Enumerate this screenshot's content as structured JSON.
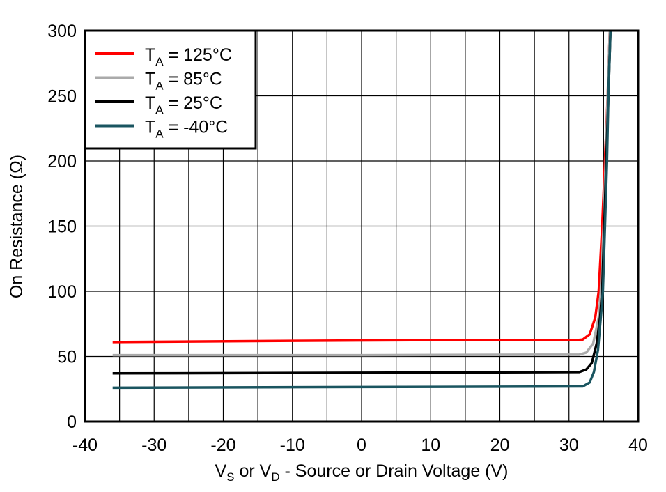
{
  "chart_data": {
    "type": "line",
    "title": "",
    "xlabel": {
      "prefix": "V",
      "sub1": "S",
      "mid": " or V",
      "sub2": "D",
      "suffix": " - Source or Drain Voltage (V)"
    },
    "ylabel": "On Resistance (Ω)",
    "xlim": [
      -40,
      40
    ],
    "ylim": [
      0,
      300
    ],
    "xticks": [
      -40,
      -30,
      -20,
      -10,
      0,
      10,
      20,
      30,
      40
    ],
    "yticks": [
      0,
      50,
      100,
      150,
      200,
      250,
      300
    ],
    "x_grid_step": 5,
    "y_grid_step": 50,
    "grid": true,
    "legend_placement": "top-left",
    "series": [
      {
        "name": "125°C",
        "label_prefix": "T",
        "label_sub": "A",
        "label_rest": " = 125°C",
        "color": "#ff0000",
        "points": [
          [
            -36,
            61
          ],
          [
            -10,
            62
          ],
          [
            10,
            62.5
          ],
          [
            31,
            62.5
          ],
          [
            32,
            63
          ],
          [
            33,
            67
          ],
          [
            33.8,
            80
          ],
          [
            34.3,
            100
          ],
          [
            34.8,
            150
          ],
          [
            35.2,
            200
          ],
          [
            35.6,
            250
          ],
          [
            35.9,
            300
          ]
        ]
      },
      {
        "name": "85°C",
        "label_prefix": "T",
        "label_sub": "A",
        "label_rest": " = 85°C",
        "color": "#aaaaaa",
        "points": [
          [
            -36,
            51
          ],
          [
            0,
            51
          ],
          [
            31.5,
            51.5
          ],
          [
            32.5,
            53
          ],
          [
            33.5,
            60
          ],
          [
            34.3,
            80
          ],
          [
            34.6,
            100
          ],
          [
            35,
            150
          ],
          [
            35.3,
            200
          ],
          [
            35.6,
            250
          ],
          [
            35.9,
            300
          ]
        ]
      },
      {
        "name": "25°C",
        "label_prefix": "T",
        "label_sub": "A",
        "label_rest": " = 25°C",
        "color": "#000000",
        "points": [
          [
            -36,
            37
          ],
          [
            0,
            37.5
          ],
          [
            31.5,
            38
          ],
          [
            32.5,
            40
          ],
          [
            33.3,
            45
          ],
          [
            34,
            60
          ],
          [
            34.5,
            80
          ],
          [
            34.8,
            100
          ],
          [
            35.1,
            150
          ],
          [
            35.4,
            200
          ],
          [
            35.7,
            250
          ],
          [
            36,
            300
          ]
        ]
      },
      {
        "name": "-40°C",
        "label_prefix": "T",
        "label_sub": "A",
        "label_rest": " = -40°C",
        "color": "#1a5560",
        "points": [
          [
            -36,
            26
          ],
          [
            0,
            26.5
          ],
          [
            32,
            27
          ],
          [
            33,
            30
          ],
          [
            33.6,
            38
          ],
          [
            34.2,
            55
          ],
          [
            34.6,
            80
          ],
          [
            34.9,
            100
          ],
          [
            35.2,
            150
          ],
          [
            35.5,
            200
          ],
          [
            35.7,
            250
          ],
          [
            36,
            300
          ]
        ]
      }
    ]
  }
}
